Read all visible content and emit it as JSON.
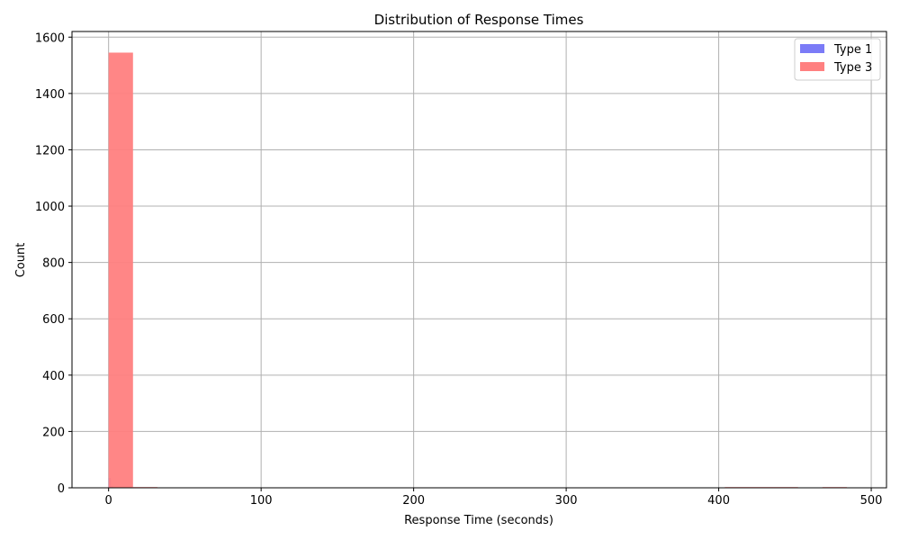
{
  "chart_data": {
    "type": "bar",
    "title": "Distribution of Response Times",
    "xlabel": "Response Time (seconds)",
    "ylabel": "Count",
    "xlim": [
      -24,
      510
    ],
    "ylim": [
      0,
      1620
    ],
    "x_ticks": [
      0,
      100,
      200,
      300,
      400,
      500
    ],
    "y_ticks": [
      0,
      200,
      400,
      600,
      800,
      1000,
      1200,
      1400,
      1600
    ],
    "grid": true,
    "legend_position": "top-right",
    "series": [
      {
        "name": "Type 1",
        "color": "#7b7bf7",
        "bins": [
          {
            "x0": 0.0,
            "x1": 1.5,
            "count": 35
          },
          {
            "x0": 1.5,
            "x1": 3.0,
            "count": 5
          }
        ]
      },
      {
        "name": "Type 3",
        "color": "#ff8080",
        "bins": [
          {
            "x0": 0,
            "x1": 16,
            "count": 1545
          },
          {
            "x0": 16,
            "x1": 32,
            "count": 2
          },
          {
            "x0": 404,
            "x1": 420,
            "count": 1
          },
          {
            "x0": 420,
            "x1": 436,
            "count": 1
          },
          {
            "x0": 436,
            "x1": 452,
            "count": 1
          },
          {
            "x0": 468,
            "x1": 484,
            "count": 1
          }
        ]
      }
    ]
  }
}
